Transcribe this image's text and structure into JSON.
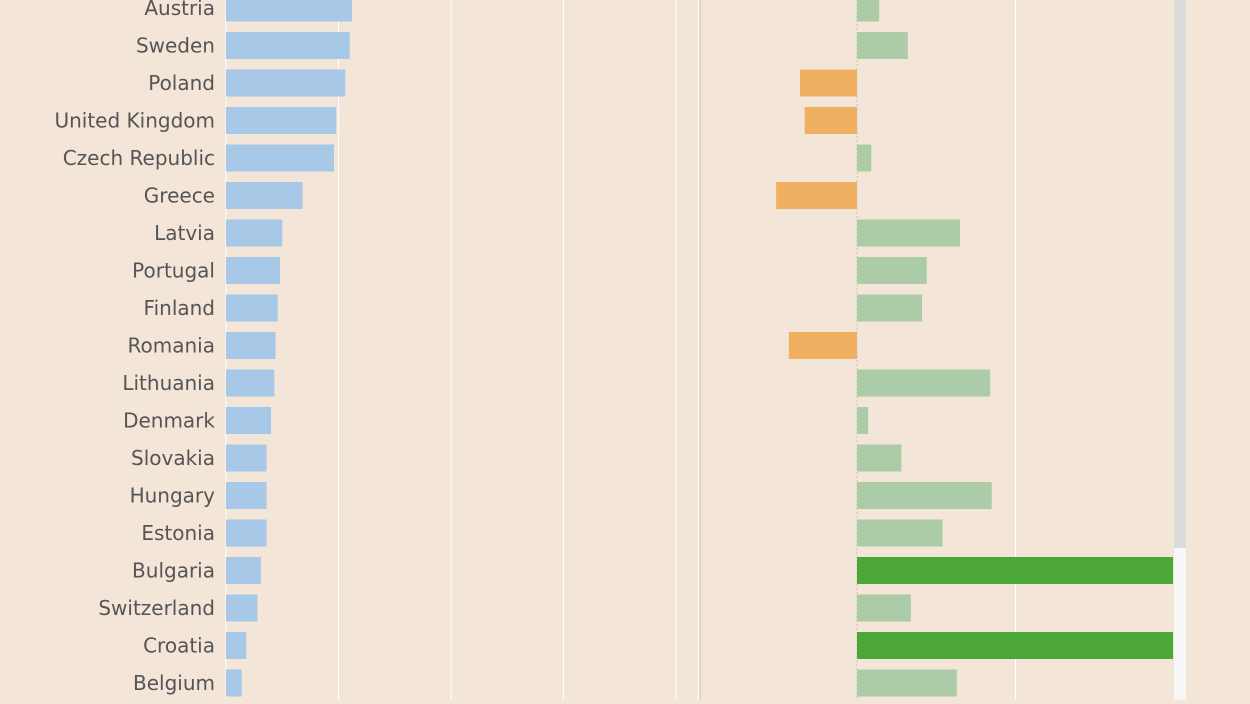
{
  "colors": {
    "background": "#f3e5d8",
    "left_bar": "#a7c8e6",
    "right_positive": "#accca8",
    "right_negative": "#efb062",
    "right_highlight": "#4ba736",
    "gridline": "#ffffff",
    "zero_line": "#c9c2bb",
    "label_text": "#555555"
  },
  "chart_data": [
    {
      "type": "bar",
      "orientation": "horizontal",
      "title": "",
      "xlabel": "",
      "ylabel": "",
      "xlim": [
        0,
        21
      ],
      "gridlines": [
        5,
        10,
        15,
        20
      ],
      "grid": true,
      "categories": [
        "Austria",
        "Sweden",
        "Poland",
        "United Kingdom",
        "Czech Republic",
        "Greece",
        "Latvia",
        "Portugal",
        "Finland",
        "Romania",
        "Lithuania",
        "Denmark",
        "Slovakia",
        "Hungary",
        "Estonia",
        "Bulgaria",
        "Switzerland",
        "Croatia",
        "Belgium"
      ],
      "values": [
        5.6,
        5.5,
        5.3,
        4.9,
        4.8,
        3.4,
        2.5,
        2.4,
        2.3,
        2.2,
        2.15,
        2.0,
        1.8,
        1.8,
        1.8,
        1.55,
        1.4,
        0.9,
        0.7
      ]
    },
    {
      "type": "bar",
      "orientation": "horizontal",
      "title": "",
      "xlabel": "",
      "ylabel": "",
      "xlim": [
        -5,
        10
      ],
      "gridlines": [
        -5,
        5
      ],
      "grid": true,
      "zero_line": true,
      "categories": [
        "Austria",
        "Sweden",
        "Poland",
        "United Kingdom",
        "Czech Republic",
        "Greece",
        "Latvia",
        "Portugal",
        "Finland",
        "Romania",
        "Lithuania",
        "Denmark",
        "Slovakia",
        "Hungary",
        "Estonia",
        "Bulgaria",
        "Switzerland",
        "Croatia",
        "Belgium"
      ],
      "values": [
        0.7,
        1.6,
        -1.8,
        -1.65,
        0.45,
        -2.55,
        3.25,
        2.2,
        2.05,
        -2.15,
        4.2,
        0.35,
        1.4,
        4.25,
        2.7,
        10,
        1.7,
        10,
        3.15
      ],
      "highlighted": [
        "Bulgaria",
        "Croatia"
      ]
    }
  ]
}
